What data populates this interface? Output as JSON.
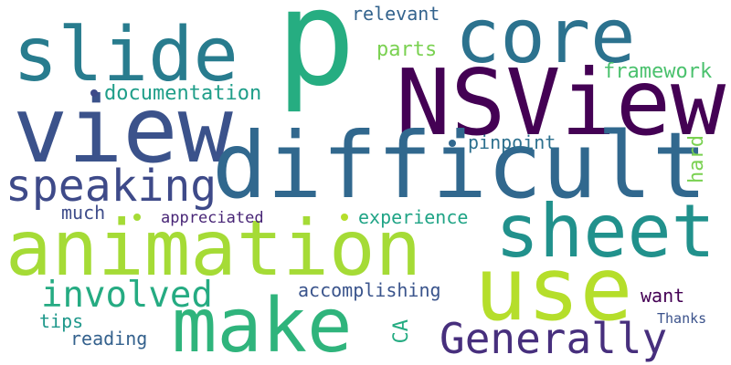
{
  "words": {
    "p": {
      "text": "p",
      "color": "#26AD81"
    },
    "core": {
      "text": "core",
      "color": "#2C728E"
    },
    "slide": {
      "text": "slide",
      "color": "#287C8E"
    },
    "nsview": {
      "text": "NSView",
      "color": "#440154"
    },
    "view": {
      "text": "view",
      "color": "#3B528B"
    },
    "difficult": {
      "text": "difficult",
      "color": "#31688E"
    },
    "speaking": {
      "text": "speaking",
      "color": "#3E4A89"
    },
    "sheet": {
      "text": "sheet",
      "color": "#21918C"
    },
    "animation": {
      "text": "animation",
      "color": "#A5DB36"
    },
    "use": {
      "text": "use",
      "color": "#B5DE2B"
    },
    "make": {
      "text": "make",
      "color": "#2FB47C"
    },
    "generally": {
      "text": "Generally",
      "color": "#472F7D"
    },
    "involved": {
      "text": "involved",
      "color": "#25AB82"
    },
    "relevant": {
      "text": "relevant",
      "color": "#33638D"
    },
    "parts": {
      "text": "parts",
      "color": "#7AD151"
    },
    "framework": {
      "text": "framework",
      "color": "#4AC16D"
    },
    "documentation": {
      "text": "documentation",
      "color": "#1F9E89"
    },
    "pinpoint": {
      "text": "pinpoint",
      "color": "#2D708E"
    },
    "hard": {
      "text": "hard",
      "color": "#7AD151"
    },
    "much": {
      "text": "much",
      "color": "#3E4C8A"
    },
    "appreciated": {
      "text": "appreciated",
      "color": "#482576"
    },
    "experience": {
      "text": "experience",
      "color": "#20A486"
    },
    "accomplishing": {
      "text": "accomplishing",
      "color": "#3A548C"
    },
    "tips": {
      "text": "tips",
      "color": "#1F988B"
    },
    "reading": {
      "text": "reading",
      "color": "#34618D"
    },
    "ca": {
      "text": "CA",
      "color": "#25AC82"
    },
    "want": {
      "text": "want",
      "color": "#440154"
    },
    "thanks": {
      "text": "Thanks",
      "color": "#3B528B"
    }
  },
  "dots": [
    {
      "color": "#3E4A89"
    },
    {
      "color": "#31688E"
    },
    {
      "color": "#A5DB36"
    },
    {
      "color": "#B5DE2B"
    }
  ]
}
